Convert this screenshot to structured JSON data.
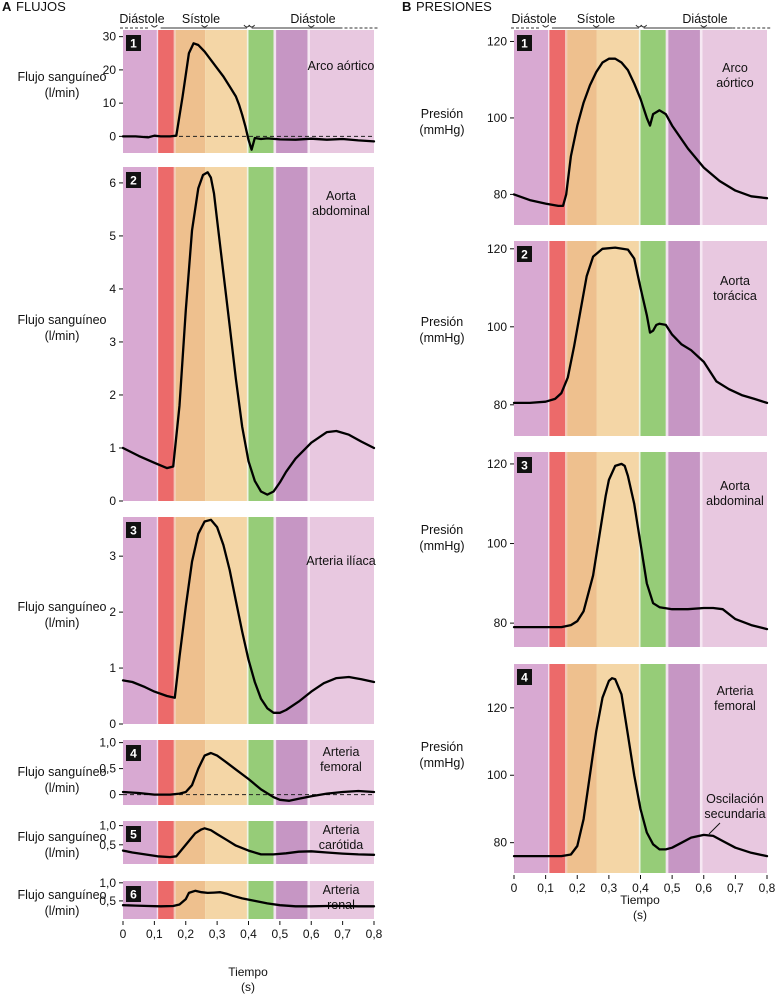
{
  "panels": {
    "A": {
      "letter": "A",
      "title": "FLUJOS"
    },
    "B": {
      "letter": "B",
      "title": "PRESIONES"
    }
  },
  "phases": [
    "Diástole",
    "Sístole",
    "Diástole"
  ],
  "xlabel_line1": "Tiempo",
  "xlabel_line2": "(s)",
  "x_tick_labels": [
    "0",
    "0,1",
    "0,2",
    "0,3",
    "0,4",
    "0,5",
    "0,6",
    "0,7",
    "0,8"
  ],
  "colors": {
    "diastole": "#d8a9d2",
    "atrial_systole": "#ec6a6a",
    "systole_dark": "#eec08e",
    "systole_light": "#f4d6a6",
    "green": "#96cc78",
    "purple": "#c696c4",
    "late_diastole": "#e8c8e0",
    "curve": "#000000"
  },
  "chart_data": [
    {
      "type": "line",
      "panel": "A",
      "number": "1",
      "label_lines": [
        "Arco aórtico"
      ],
      "ylabel_lines": [
        "Flujo sanguíneo",
        "(l/min)"
      ],
      "xlim": [
        0,
        0.8
      ],
      "ylim": [
        -5,
        32
      ],
      "yticks": [
        0,
        10,
        20,
        30
      ],
      "ytick_labels": [
        "0",
        "10",
        "20",
        "30"
      ],
      "zero_line": true,
      "series": [
        {
          "x": [
            0,
            0.04,
            0.08,
            0.1,
            0.12,
            0.15,
            0.17,
            0.19,
            0.21,
            0.225,
            0.24,
            0.26,
            0.28,
            0.3,
            0.32,
            0.34,
            0.36,
            0.37,
            0.38,
            0.39,
            0.4,
            0.41,
            0.42,
            0.44,
            0.46,
            0.5,
            0.55,
            0.6,
            0.65,
            0.7,
            0.75,
            0.8
          ],
          "y": [
            0,
            0,
            -0.3,
            0.2,
            0,
            0,
            0.2,
            12,
            25,
            28,
            27.5,
            25.5,
            23,
            20.5,
            18,
            15,
            12,
            9.5,
            6.5,
            3,
            -1,
            -4,
            -0.5,
            -0.8,
            -0.6,
            -0.9,
            -1,
            -0.7,
            -1,
            -0.8,
            -1.2,
            -1.5
          ]
        }
      ]
    },
    {
      "type": "line",
      "panel": "A",
      "number": "2",
      "label_lines": [
        "Aorta",
        "abdominal"
      ],
      "ylabel_lines": [
        "Flujo sanguíneo",
        "(l/min)"
      ],
      "xlim": [
        0,
        0.8
      ],
      "ylim": [
        0,
        6.3
      ],
      "yticks": [
        0,
        1,
        2,
        3,
        4,
        5,
        6
      ],
      "ytick_labels": [
        "0",
        "1",
        "2",
        "3",
        "4",
        "5",
        "6"
      ],
      "series": [
        {
          "x": [
            0,
            0.05,
            0.1,
            0.14,
            0.16,
            0.18,
            0.2,
            0.22,
            0.24,
            0.255,
            0.27,
            0.28,
            0.29,
            0.3,
            0.32,
            0.34,
            0.36,
            0.38,
            0.4,
            0.42,
            0.44,
            0.46,
            0.48,
            0.5,
            0.52,
            0.55,
            0.6,
            0.65,
            0.68,
            0.72,
            0.76,
            0.8
          ],
          "y": [
            1,
            0.85,
            0.72,
            0.62,
            0.65,
            1.8,
            3.6,
            5.1,
            5.9,
            6.15,
            6.2,
            6.1,
            5.8,
            5.3,
            4.3,
            3.3,
            2.3,
            1.4,
            0.75,
            0.38,
            0.18,
            0.12,
            0.18,
            0.35,
            0.55,
            0.8,
            1.1,
            1.3,
            1.32,
            1.25,
            1.12,
            1
          ]
        }
      ]
    },
    {
      "type": "line",
      "panel": "A",
      "number": "3",
      "label_lines": [
        "Arteria ilíaca"
      ],
      "ylabel_lines": [
        "Flujo sanguíneo",
        "(l/min)"
      ],
      "xlim": [
        0,
        0.8
      ],
      "ylim": [
        0,
        3.7
      ],
      "yticks": [
        0,
        1,
        2,
        3
      ],
      "ytick_labels": [
        "0",
        "1",
        "2",
        "3"
      ],
      "series": [
        {
          "x": [
            0,
            0.03,
            0.07,
            0.1,
            0.14,
            0.165,
            0.18,
            0.2,
            0.22,
            0.24,
            0.26,
            0.28,
            0.3,
            0.32,
            0.34,
            0.36,
            0.38,
            0.4,
            0.42,
            0.44,
            0.46,
            0.48,
            0.5,
            0.52,
            0.56,
            0.6,
            0.64,
            0.68,
            0.72,
            0.76,
            0.8
          ],
          "y": [
            0.78,
            0.75,
            0.66,
            0.58,
            0.5,
            0.47,
            1.2,
            2.1,
            2.9,
            3.4,
            3.62,
            3.65,
            3.52,
            3.2,
            2.75,
            2.2,
            1.65,
            1.15,
            0.75,
            0.45,
            0.28,
            0.2,
            0.2,
            0.25,
            0.4,
            0.58,
            0.73,
            0.82,
            0.84,
            0.8,
            0.75
          ]
        }
      ]
    },
    {
      "type": "line",
      "panel": "A",
      "number": "4",
      "label_lines": [
        "Arteria",
        "femoral"
      ],
      "ylabel_lines": [
        "Flujo sanguíneo",
        "(l/min)"
      ],
      "xlim": [
        0,
        0.8
      ],
      "ylim": [
        -0.2,
        1.05
      ],
      "yticks": [
        0,
        0.5,
        1
      ],
      "ytick_labels": [
        "0",
        "0,5",
        "1,0"
      ],
      "zero_line": true,
      "series": [
        {
          "x": [
            0,
            0.05,
            0.1,
            0.15,
            0.18,
            0.2,
            0.22,
            0.24,
            0.26,
            0.28,
            0.3,
            0.33,
            0.36,
            0.4,
            0.44,
            0.48,
            0.5,
            0.53,
            0.56,
            0.6,
            0.65,
            0.7,
            0.75,
            0.8
          ],
          "y": [
            0.05,
            0.03,
            0,
            0,
            0.02,
            0.05,
            0.18,
            0.5,
            0.75,
            0.8,
            0.75,
            0.62,
            0.48,
            0.3,
            0.1,
            -0.05,
            -0.1,
            -0.12,
            -0.08,
            -0.03,
            0.02,
            0.05,
            0.07,
            0.05
          ]
        }
      ]
    },
    {
      "type": "line",
      "panel": "A",
      "number": "5",
      "label_lines": [
        "Arteria",
        "carótida"
      ],
      "ylabel_lines": [
        "Flujo sanguíneo",
        "(l/min)"
      ],
      "xlim": [
        0,
        0.8
      ],
      "ylim": [
        0,
        1.12
      ],
      "yticks": [
        0.5,
        1
      ],
      "ytick_labels": [
        "0,5",
        "1,0"
      ],
      "series": [
        {
          "x": [
            0,
            0.03,
            0.07,
            0.11,
            0.15,
            0.17,
            0.19,
            0.21,
            0.23,
            0.25,
            0.26,
            0.28,
            0.3,
            0.33,
            0.36,
            0.4,
            0.44,
            0.48,
            0.52,
            0.56,
            0.6,
            0.65,
            0.7,
            0.75,
            0.8
          ],
          "y": [
            0.35,
            0.3,
            0.25,
            0.2,
            0.18,
            0.2,
            0.4,
            0.6,
            0.8,
            0.9,
            0.93,
            0.88,
            0.78,
            0.63,
            0.48,
            0.35,
            0.25,
            0.25,
            0.28,
            0.32,
            0.33,
            0.3,
            0.27,
            0.25,
            0.24
          ]
        }
      ]
    },
    {
      "type": "line",
      "panel": "A",
      "number": "6",
      "label_lines": [
        "Arteria",
        "renal"
      ],
      "ylabel_lines": [
        "Flujo sanguíneo",
        "(l/min)"
      ],
      "xlim": [
        0,
        0.8
      ],
      "ylim": [
        0,
        1.05
      ],
      "yticks": [
        0.5,
        1
      ],
      "ytick_labels": [
        "0,5",
        "1,0"
      ],
      "series": [
        {
          "x": [
            0,
            0.04,
            0.08,
            0.12,
            0.16,
            0.18,
            0.2,
            0.21,
            0.23,
            0.25,
            0.27,
            0.29,
            0.31,
            0.33,
            0.35,
            0.38,
            0.42,
            0.46,
            0.5,
            0.55,
            0.6,
            0.65,
            0.7,
            0.75,
            0.8
          ],
          "y": [
            0.38,
            0.37,
            0.36,
            0.35,
            0.36,
            0.4,
            0.55,
            0.72,
            0.78,
            0.74,
            0.72,
            0.73,
            0.74,
            0.7,
            0.64,
            0.57,
            0.5,
            0.43,
            0.38,
            0.35,
            0.35,
            0.36,
            0.36,
            0.35,
            0.35
          ]
        }
      ]
    },
    {
      "type": "line",
      "panel": "B",
      "number": "1",
      "label_lines": [
        "Arco",
        "aórtico"
      ],
      "ylabel_lines": [
        "Presión",
        "(mmHg)"
      ],
      "xlim": [
        0,
        0.8
      ],
      "ylim": [
        72,
        123
      ],
      "yticks": [
        80,
        100,
        120
      ],
      "ytick_labels": [
        "80",
        "100",
        "120"
      ],
      "series": [
        {
          "x": [
            0,
            0.05,
            0.1,
            0.14,
            0.155,
            0.165,
            0.18,
            0.2,
            0.22,
            0.24,
            0.26,
            0.28,
            0.3,
            0.32,
            0.34,
            0.36,
            0.38,
            0.4,
            0.42,
            0.43,
            0.44,
            0.46,
            0.48,
            0.5,
            0.55,
            0.6,
            0.65,
            0.7,
            0.75,
            0.8
          ],
          "y": [
            80,
            78.5,
            77.6,
            77,
            77,
            80,
            90,
            98,
            104,
            108.5,
            112,
            114.5,
            115.5,
            115.5,
            114.5,
            112.5,
            109,
            105,
            100,
            98,
            101,
            102,
            101,
            98,
            92,
            87,
            83.5,
            81,
            79.5,
            79
          ]
        }
      ]
    },
    {
      "type": "line",
      "panel": "B",
      "number": "2",
      "label_lines": [
        "Aorta",
        "torácica"
      ],
      "ylabel_lines": [
        "Presión",
        "(mmHg)"
      ],
      "xlim": [
        0,
        0.8
      ],
      "ylim": [
        72,
        122
      ],
      "yticks": [
        80,
        100,
        120
      ],
      "ytick_labels": [
        "80",
        "100",
        "120"
      ],
      "series": [
        {
          "x": [
            0,
            0.05,
            0.1,
            0.13,
            0.15,
            0.17,
            0.19,
            0.21,
            0.23,
            0.25,
            0.28,
            0.32,
            0.36,
            0.38,
            0.4,
            0.42,
            0.43,
            0.44,
            0.45,
            0.46,
            0.48,
            0.5,
            0.53,
            0.56,
            0.6,
            0.64,
            0.68,
            0.72,
            0.76,
            0.8
          ],
          "y": [
            80.5,
            80.5,
            80.8,
            81.5,
            83,
            87,
            95,
            104,
            113,
            118,
            120,
            120.3,
            119.8,
            117.5,
            110,
            103,
            98.5,
            99,
            100.5,
            100.8,
            100.5,
            98,
            95.5,
            94,
            91,
            86,
            84,
            82.5,
            81.5,
            80.5
          ]
        }
      ]
    },
    {
      "type": "line",
      "panel": "B",
      "number": "3",
      "label_lines": [
        "Aorta",
        "abdominal"
      ],
      "ylabel_lines": [
        "Presión",
        "(mmHg)"
      ],
      "xlim": [
        0,
        0.8
      ],
      "ylim": [
        74,
        123
      ],
      "yticks": [
        80,
        100,
        120
      ],
      "ytick_labels": [
        "80",
        "100",
        "120"
      ],
      "series": [
        {
          "x": [
            0,
            0.05,
            0.1,
            0.15,
            0.18,
            0.2,
            0.22,
            0.25,
            0.27,
            0.29,
            0.3,
            0.32,
            0.34,
            0.35,
            0.36,
            0.38,
            0.4,
            0.42,
            0.44,
            0.46,
            0.5,
            0.55,
            0.6,
            0.63,
            0.66,
            0.7,
            0.75,
            0.8
          ],
          "y": [
            79,
            79,
            79,
            79,
            79.5,
            80.5,
            83,
            92,
            102,
            112,
            116,
            119.5,
            120,
            119.5,
            117,
            110,
            100,
            90,
            85,
            84,
            83.5,
            83.5,
            83.8,
            83.8,
            83.5,
            81,
            79.5,
            78.5
          ]
        }
      ]
    },
    {
      "type": "line",
      "panel": "B",
      "number": "4",
      "label_lines": [
        "Arteria",
        "femoral"
      ],
      "ylabel_lines": [
        "Presión",
        "(mmHg)"
      ],
      "secondary_label_lines": [
        "Oscilación",
        "secundaria"
      ],
      "xlim": [
        0,
        0.8
      ],
      "ylim": [
        71,
        133
      ],
      "yticks": [
        80,
        100,
        120
      ],
      "ytick_labels": [
        "80",
        "100",
        "120"
      ],
      "series": [
        {
          "x": [
            0,
            0.05,
            0.1,
            0.15,
            0.18,
            0.2,
            0.22,
            0.24,
            0.26,
            0.28,
            0.3,
            0.31,
            0.32,
            0.34,
            0.36,
            0.38,
            0.4,
            0.42,
            0.44,
            0.46,
            0.48,
            0.5,
            0.53,
            0.56,
            0.6,
            0.63,
            0.66,
            0.7,
            0.75,
            0.8
          ],
          "y": [
            76,
            76,
            76,
            76,
            76.5,
            79,
            87,
            100,
            113,
            123,
            128,
            128.8,
            128.5,
            124,
            112,
            100,
            90,
            83,
            79.5,
            78,
            78,
            78.5,
            80,
            81.5,
            82.3,
            82,
            80.5,
            78.5,
            77,
            76
          ]
        }
      ]
    }
  ]
}
